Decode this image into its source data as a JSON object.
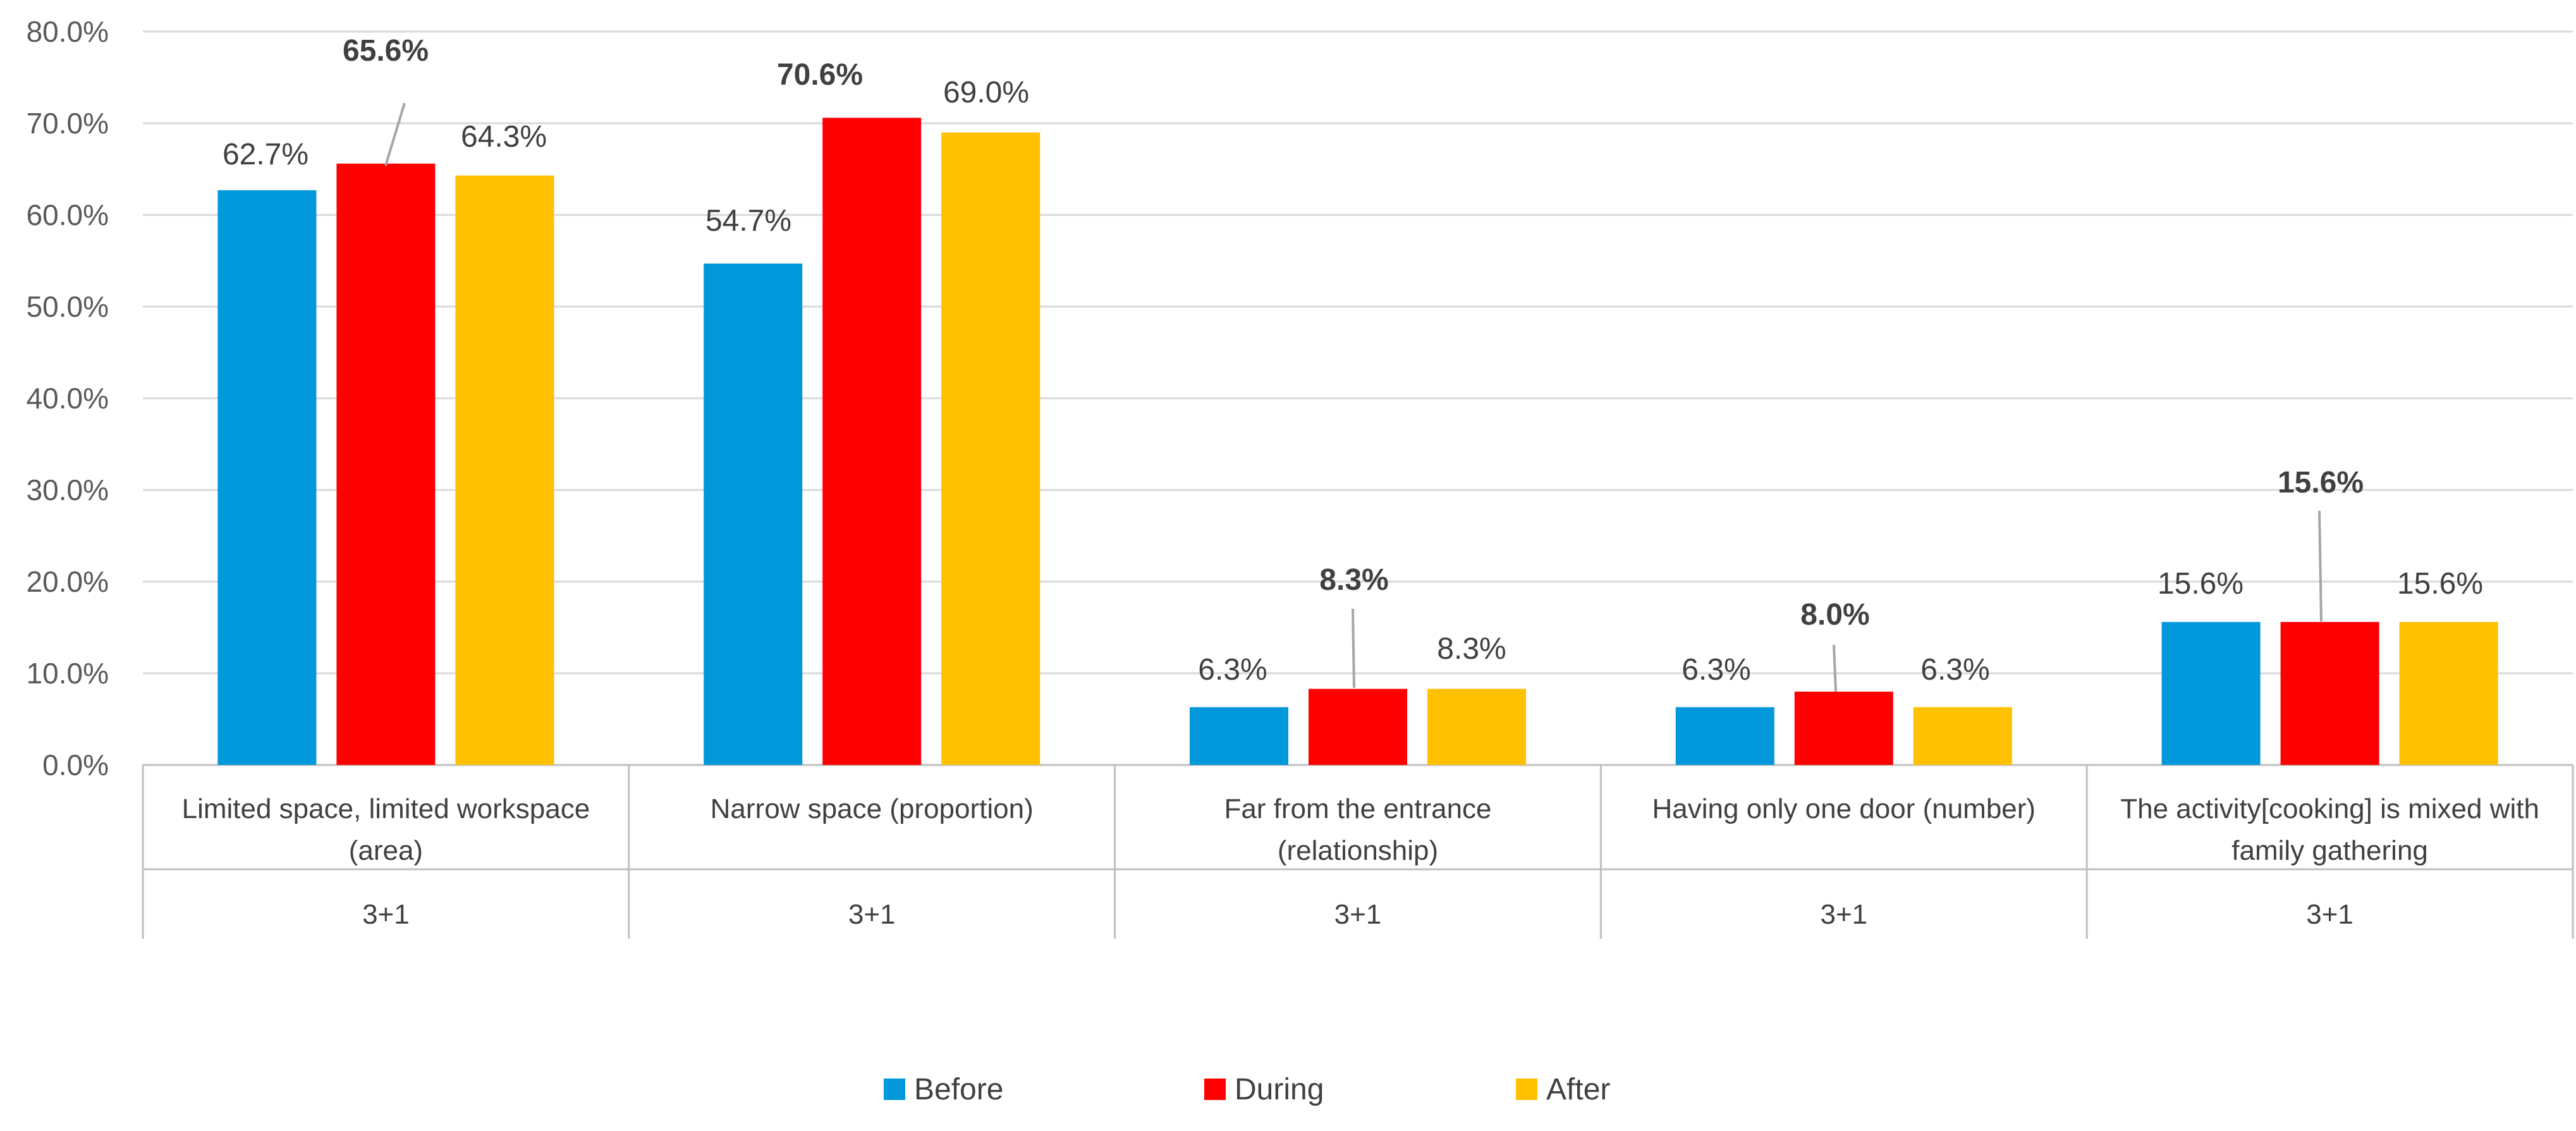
{
  "chart_data": {
    "type": "bar",
    "title": "",
    "xlabel": "",
    "ylabel": "",
    "ylim": [
      0,
      80
    ],
    "yticks": [
      "0.0%",
      "10.0%",
      "20.0%",
      "30.0%",
      "40.0%",
      "50.0%",
      "60.0%",
      "70.0%",
      "80.0%"
    ],
    "grid": true,
    "legend_position": "bottom",
    "categories": [
      [
        "Limited space, limited workspace",
        "(area)"
      ],
      [
        "Narrow space (proportion)"
      ],
      [
        "Far from the entrance",
        "(relationship)"
      ],
      [
        "Having only one door (number)"
      ],
      [
        "The activity[cooking] is mixed with",
        "family gathering"
      ]
    ],
    "group_labels": [
      "3+1",
      "3+1",
      "3+1",
      "3+1",
      "3+1"
    ],
    "series": [
      {
        "name": "Before",
        "color": "#0098DA",
        "values": [
          62.7,
          54.7,
          6.3,
          6.3,
          15.6
        ],
        "labels": [
          "62.7%",
          "54.7%",
          "6.3%",
          "6.3%",
          "15.6%"
        ]
      },
      {
        "name": "During",
        "color": "#FF0000",
        "values": [
          65.6,
          70.6,
          8.3,
          8.0,
          15.6
        ],
        "labels": [
          "65.6%",
          "70.6%",
          "8.3%",
          "8.0%",
          "15.6%"
        ],
        "bold_labels": true
      },
      {
        "name": "After",
        "color": "#FFC000",
        "values": [
          64.3,
          69.0,
          8.3,
          6.3,
          15.6
        ],
        "labels": [
          "64.3%",
          "69.0%",
          "8.3%",
          "6.3%",
          "15.6%"
        ]
      }
    ]
  }
}
